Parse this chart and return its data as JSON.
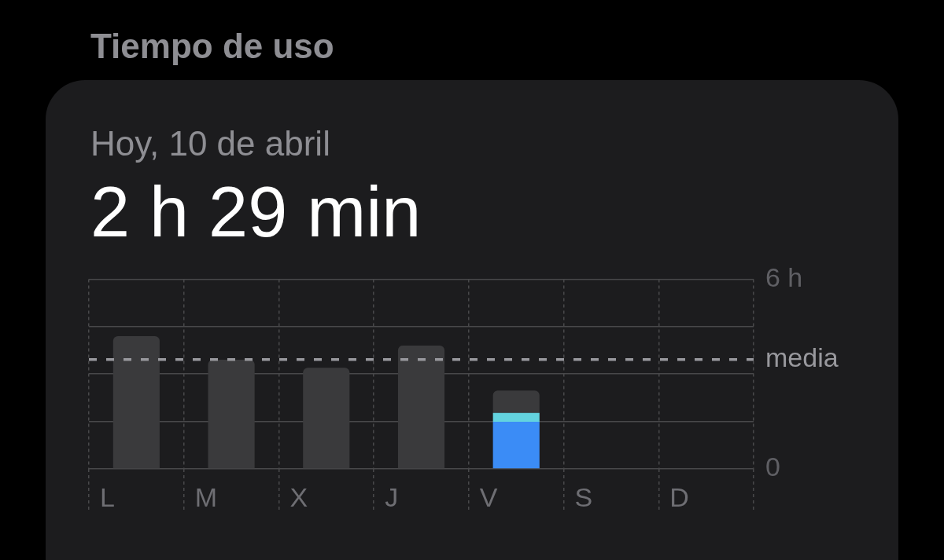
{
  "chart_data": {
    "type": "bar",
    "title": "Tiempo de uso",
    "subtitle": "Hoy, 10 de abril",
    "annotations": [
      "2 h 29 min"
    ],
    "categories": [
      "L",
      "M",
      "X",
      "J",
      "V",
      "S",
      "D"
    ],
    "stacked": true,
    "series": [
      {
        "color": "#3b8cf6",
        "values": [
          null,
          null,
          null,
          null,
          1.49,
          null,
          null
        ]
      },
      {
        "color": "#63d3df",
        "values": [
          null,
          null,
          null,
          null,
          0.28,
          null,
          null
        ]
      },
      {
        "color": "#3a3a3c",
        "values": [
          4.2,
          3.45,
          3.2,
          3.9,
          0.71,
          null,
          null
        ]
      }
    ],
    "ylim": [
      0,
      6
    ],
    "yticks": [
      0,
      {
        "value": 1.5,
        "label": null
      },
      {
        "value": 3,
        "label": null
      },
      {
        "value": 4.5,
        "label": null
      },
      {
        "value": 6,
        "label": "6 h"
      }
    ],
    "grid": true,
    "ref_lines": [
      {
        "axis": "y",
        "value": 3.46,
        "label": "media",
        "line_style": "dashed",
        "color": "#98989d"
      }
    ]
  }
}
